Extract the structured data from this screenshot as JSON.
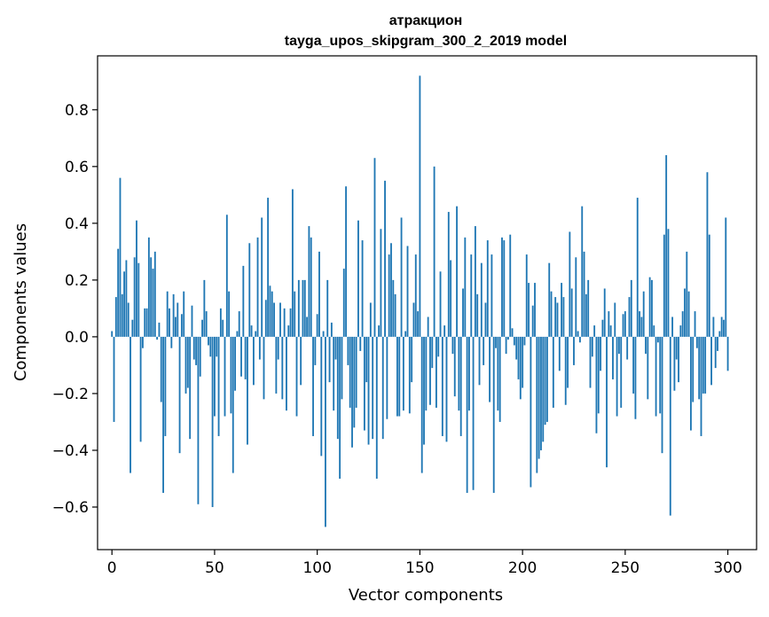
{
  "chart_data": {
    "type": "bar",
    "title": "атракцион",
    "subtitle": "tayga_upos_skipgram_300_2_2019 model",
    "xlabel": "Vector components",
    "ylabel": "Components values",
    "xlim": [
      -7,
      314
    ],
    "ylim": [
      -0.75,
      0.99
    ],
    "xticks": [
      0,
      50,
      100,
      150,
      200,
      250,
      300
    ],
    "xtick_labels": [
      "0",
      "50",
      "100",
      "150",
      "200",
      "250",
      "300"
    ],
    "yticks": [
      -0.6,
      -0.4,
      -0.2,
      0.0,
      0.2,
      0.4,
      0.6,
      0.8
    ],
    "ytick_labels": [
      "−0.6",
      "−0.4",
      "−0.2",
      "0.0",
      "0.2",
      "0.4",
      "0.6",
      "0.8"
    ],
    "grid": false,
    "bar_color": "#1f77b4",
    "values": [
      0.02,
      -0.3,
      0.14,
      0.31,
      0.56,
      0.15,
      0.23,
      0.27,
      0.12,
      -0.48,
      0.06,
      0.28,
      0.41,
      0.26,
      -0.37,
      -0.04,
      0.1,
      0.1,
      0.35,
      0.28,
      0.24,
      0.3,
      -0.01,
      0.05,
      -0.23,
      -0.55,
      -0.35,
      0.16,
      0.1,
      -0.04,
      0.15,
      0.07,
      0.12,
      -0.41,
      0.08,
      0.16,
      -0.2,
      -0.18,
      -0.36,
      0.11,
      -0.08,
      -0.1,
      -0.59,
      -0.14,
      0.06,
      0.2,
      0.09,
      -0.03,
      -0.07,
      -0.6,
      -0.28,
      -0.07,
      -0.35,
      0.1,
      0.06,
      -0.28,
      0.43,
      0.16,
      -0.27,
      -0.48,
      -0.19,
      0.02,
      0.09,
      -0.14,
      0.25,
      -0.15,
      -0.38,
      0.33,
      0.04,
      -0.17,
      0.02,
      0.35,
      -0.08,
      0.42,
      -0.22,
      0.13,
      0.49,
      0.18,
      0.16,
      0.12,
      -0.2,
      -0.08,
      0.12,
      -0.22,
      0.1,
      -0.26,
      0.04,
      0.1,
      0.52,
      0.16,
      -0.28,
      0.2,
      -0.17,
      0.2,
      0.2,
      0.07,
      0.39,
      0.35,
      -0.35,
      -0.1,
      0.08,
      0.3,
      -0.42,
      0.02,
      -0.67,
      0.2,
      -0.16,
      0.05,
      -0.26,
      -0.08,
      -0.36,
      -0.5,
      -0.22,
      0.24,
      0.53,
      -0.1,
      -0.25,
      -0.39,
      -0.32,
      -0.25,
      0.41,
      -0.05,
      0.34,
      -0.33,
      -0.16,
      -0.38,
      0.12,
      -0.36,
      0.63,
      -0.5,
      0.04,
      0.38,
      -0.36,
      0.55,
      -0.29,
      0.29,
      0.33,
      0.2,
      0.15,
      -0.28,
      -0.28,
      0.42,
      -0.26,
      0.02,
      0.32,
      -0.27,
      -0.16,
      0.12,
      0.29,
      0.09,
      0.92,
      -0.48,
      -0.38,
      -0.26,
      0.07,
      -0.24,
      -0.11,
      0.6,
      -0.25,
      -0.07,
      0.23,
      -0.35,
      0.04,
      -0.37,
      0.44,
      0.27,
      -0.06,
      -0.21,
      0.46,
      -0.26,
      -0.35,
      0.17,
      0.35,
      -0.55,
      -0.26,
      0.29,
      -0.54,
      0.39,
      0.15,
      -0.17,
      0.26,
      -0.1,
      0.12,
      0.34,
      -0.23,
      0.29,
      -0.55,
      -0.04,
      -0.26,
      -0.3,
      0.35,
      0.34,
      -0.06,
      -0.01,
      0.36,
      0.03,
      -0.03,
      -0.08,
      -0.15,
      -0.22,
      -0.18,
      -0.03,
      0.29,
      0.19,
      -0.53,
      0.11,
      0.19,
      -0.48,
      -0.43,
      -0.4,
      -0.37,
      -0.31,
      -0.3,
      0.26,
      0.16,
      -0.25,
      0.14,
      0.12,
      -0.12,
      0.19,
      0.14,
      -0.24,
      -0.18,
      0.37,
      0.17,
      -0.1,
      0.28,
      0.02,
      -0.02,
      0.46,
      0.3,
      0.15,
      0.2,
      -0.18,
      -0.07,
      0.04,
      -0.34,
      -0.27,
      -0.12,
      0.06,
      0.17,
      -0.46,
      0.09,
      0.04,
      -0.15,
      0.12,
      -0.28,
      -0.06,
      -0.25,
      0.08,
      0.09,
      -0.08,
      0.14,
      0.2,
      -0.2,
      -0.29,
      0.49,
      0.09,
      0.07,
      0.16,
      -0.06,
      -0.22,
      0.21,
      0.2,
      0.04,
      -0.28,
      -0.02,
      -0.27,
      -0.41,
      0.36,
      0.64,
      0.38,
      -0.63,
      0.07,
      -0.19,
      -0.08,
      -0.16,
      0.04,
      0.09,
      0.17,
      0.3,
      0.16,
      -0.33,
      -0.23,
      0.09,
      -0.04,
      -0.22,
      -0.35,
      -0.2,
      -0.2,
      0.58,
      0.36,
      -0.17,
      0.07,
      -0.11,
      -0.05,
      0.02,
      0.07,
      0.06,
      0.42,
      -0.12
    ]
  }
}
